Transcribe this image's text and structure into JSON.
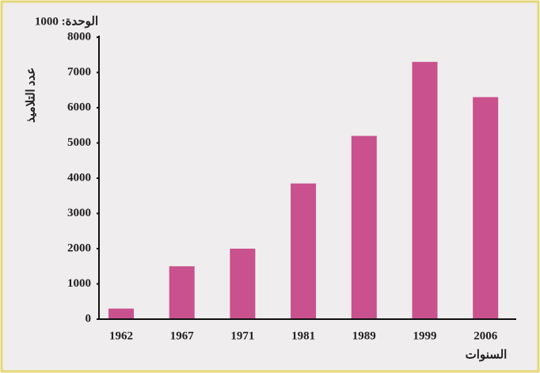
{
  "chart_data": {
    "type": "bar",
    "unit_label": "الوحدة: 1000",
    "ylabel": "عدد التلاميذ",
    "xlabel": "السنوات",
    "categories": [
      "1962",
      "1967",
      "1971",
      "1981",
      "1989",
      "1999",
      "2006"
    ],
    "values": [
      300,
      1500,
      2000,
      3850,
      5200,
      7300,
      6300
    ],
    "color": "#c9518d",
    "ylim": [
      0,
      8000
    ],
    "yticks": [
      0,
      1000,
      2000,
      3000,
      4000,
      5000,
      6000,
      7000,
      8000
    ],
    "grid": false
  }
}
